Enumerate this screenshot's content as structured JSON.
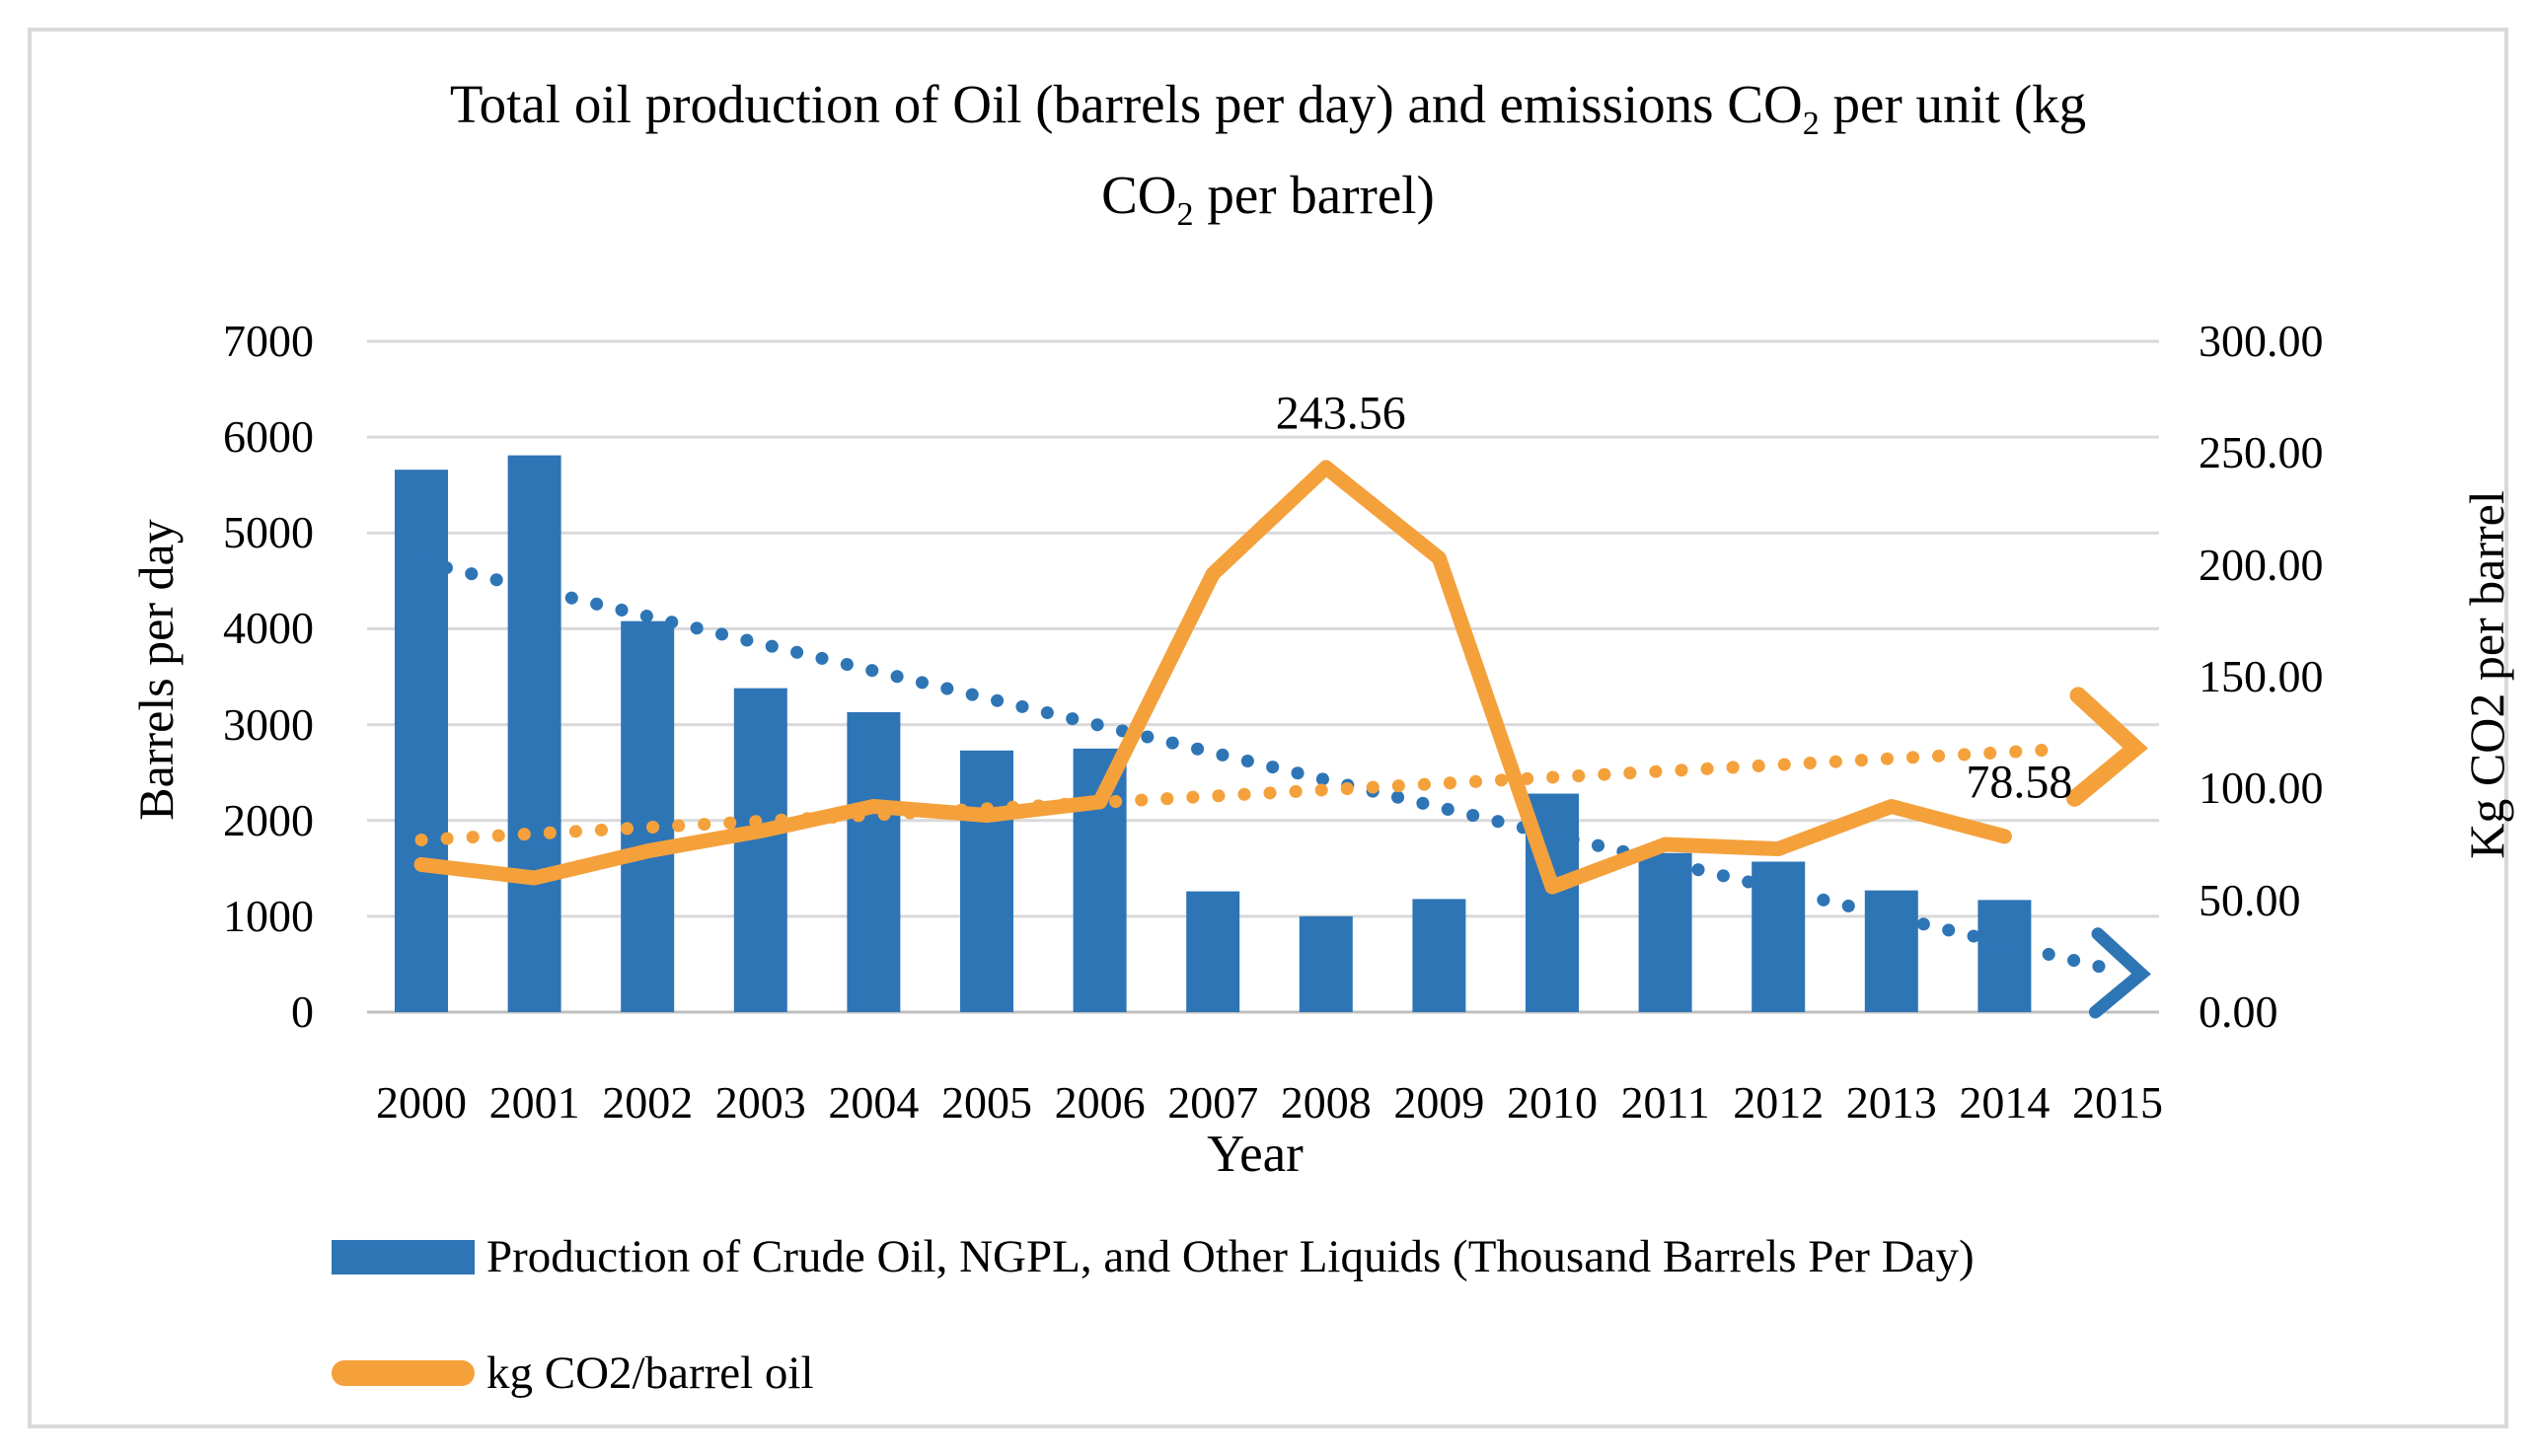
{
  "title": {
    "parts": [
      {
        "text": "Total oil production of Oil (barrels per day) and emissions CO"
      },
      {
        "text": "2",
        "sub": true
      },
      {
        "text": " per unit (kg",
        "break_after": true
      },
      {
        "text": "CO"
      },
      {
        "text": "2",
        "sub": true
      },
      {
        "text": " per barrel)"
      }
    ],
    "plain": "Total oil production of Oil (barrels per day) and emissions CO2 per unit (kg CO2 per barrel)"
  },
  "axes": {
    "left": {
      "title": "Barrels  per day",
      "tick_labels": [
        "0",
        "1000",
        "2000",
        "3000",
        "4000",
        "5000",
        "6000",
        "7000"
      ]
    },
    "right": {
      "title": "Kg CO2 per barrel",
      "tick_labels": [
        "0.00",
        "50.00",
        "100.00",
        "150.00",
        "200.00",
        "250.00",
        "300.00"
      ]
    },
    "x": {
      "title": "Year"
    }
  },
  "legend": {
    "items": [
      {
        "swatch": "bar",
        "color": "#2E75B6",
        "label": "Production of Crude Oil, NGPL, and Other Liquids (Thousand Barrels Per Day)"
      },
      {
        "swatch": "line",
        "color": "#F4A13C",
        "label": "kg CO2/barrel oil"
      }
    ],
    "position": "bottom"
  },
  "colors": {
    "bar": "#2E75B6",
    "line": "#F4A13C",
    "gridline": "#D9D9D9",
    "baseline": "#BFBFBF",
    "frame_border": "#D9D9D9",
    "text": "#000000"
  },
  "chart_data": {
    "type": "bar",
    "combo": true,
    "title": "Total oil production of Oil (barrels per day) and emissions CO2 per unit (kg CO2 per barrel)",
    "xlabel": "Year",
    "ylabel_left": "Barrels  per day",
    "ylabel_right": "Kg CO2 per barrel",
    "ylim_left": [
      0,
      7000
    ],
    "ylim_right": [
      0,
      300
    ],
    "ytick_step_left": 1000,
    "ytick_step_right": 50,
    "grid": true,
    "legend_position": "bottom",
    "categories": [
      "2000",
      "2001",
      "2002",
      "2003",
      "2004",
      "2005",
      "2006",
      "2007",
      "2008",
      "2009",
      "2010",
      "2011",
      "2012",
      "2013",
      "2014",
      "2015"
    ],
    "series": [
      {
        "name": "Production of Crude Oil, NGPL, and Other Liquids (Thousand Barrels Per Day)",
        "type": "bar",
        "axis": "left",
        "color": "#2E75B6",
        "values": [
          5660,
          5810,
          4080,
          3380,
          3130,
          2730,
          2750,
          1260,
          1000,
          1180,
          2280,
          1660,
          1570,
          1270,
          1170,
          null
        ]
      },
      {
        "name": "kg CO2/barrel oil",
        "type": "line",
        "axis": "right",
        "color": "#F4A13C",
        "values": [
          66,
          60,
          72,
          81,
          92,
          88,
          94,
          196,
          243.56,
          203,
          56,
          75,
          73,
          92,
          78.58,
          null
        ]
      }
    ],
    "trendlines": [
      {
        "for_series": "Production of Crude Oil, NGPL, and Other Liquids (Thousand Barrels Per Day)",
        "style": "dotted",
        "color": "#2E75B6",
        "axis": "left",
        "start_category": "2000",
        "start_value": 4700,
        "end_category": "2015",
        "end_value": 430,
        "arrow": true
      },
      {
        "for_series": "kg CO2/barrel oil",
        "style": "dotted",
        "color": "#F4A13C",
        "axis": "right",
        "start_category": "2000",
        "start_value": 77,
        "end_category": "2015",
        "end_value": 119,
        "arrow": true
      }
    ],
    "annotations": [
      {
        "text": "243.56",
        "category": "2008",
        "axis": "right",
        "value": 243.56
      },
      {
        "text": "78.58",
        "category": "2014",
        "axis": "right",
        "value": 78.58
      }
    ]
  }
}
